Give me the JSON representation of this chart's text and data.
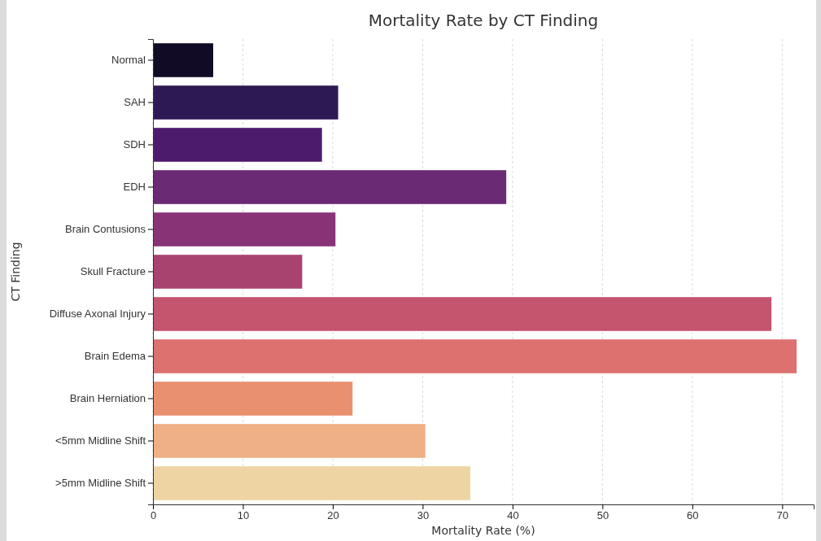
{
  "chart_data": {
    "type": "bar",
    "orientation": "horizontal",
    "title": "Mortality Rate by CT Finding",
    "xlabel": "Mortality Rate (%)",
    "ylabel": "CT Finding",
    "categories": [
      "Normal",
      "SAH",
      "SDH",
      "EDH",
      "Brain Contusions",
      "Skull Fracture",
      "Diffuse Axonal Injury",
      "Brain Edema",
      "Brain Herniation",
      "<5mm Midline Shift",
      ">5mm Midline Shift"
    ],
    "values": [
      6.7,
      20.6,
      18.8,
      39.3,
      20.3,
      16.6,
      68.8,
      71.6,
      22.2,
      30.3,
      35.3
    ],
    "colors": [
      "#110b25",
      "#2d1a55",
      "#4d1b6c",
      "#6b2a74",
      "#893377",
      "#a8426f",
      "#c5546f",
      "#dc7170",
      "#e9906f",
      "#efb085",
      "#efd4a3"
    ],
    "xlim": [
      0,
      73.5
    ],
    "xticks": [
      0,
      10,
      20,
      30,
      40,
      50,
      60,
      70
    ],
    "grid": "x"
  }
}
